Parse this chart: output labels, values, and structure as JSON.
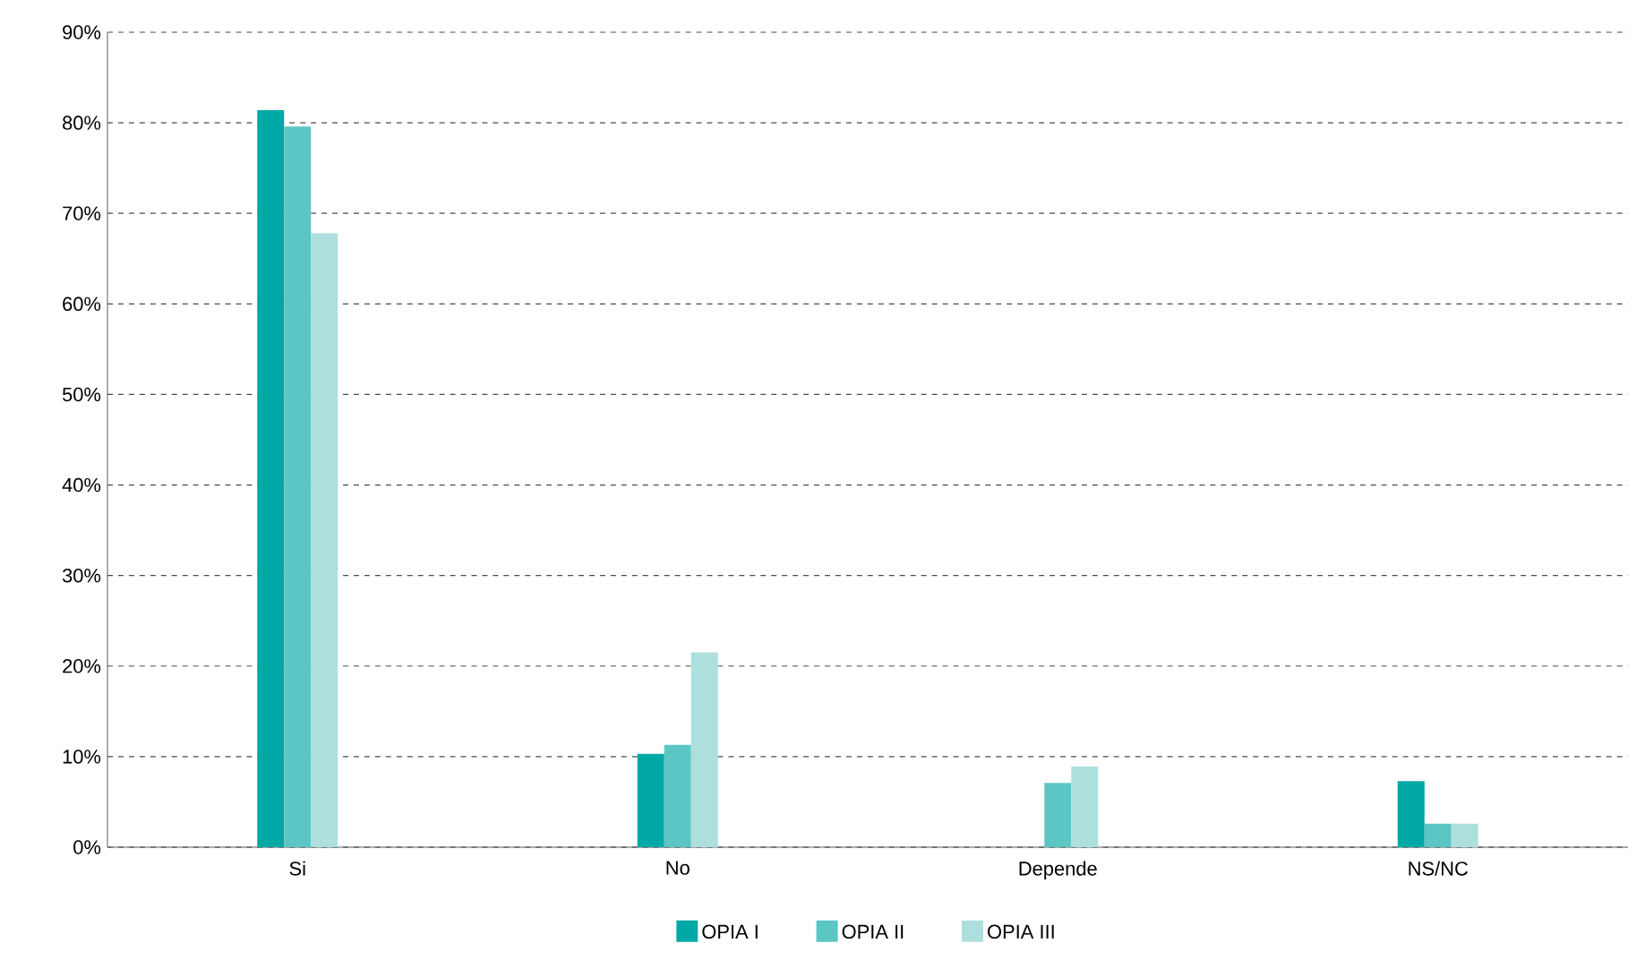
{
  "chart_data": {
    "type": "bar",
    "categories": [
      "Si",
      "No",
      "Depende",
      "NS/NC"
    ],
    "series": [
      {
        "name": "OPIA I",
        "color": "#00a9a5",
        "values": [
          81.4,
          10.3,
          null,
          7.3
        ]
      },
      {
        "name": "OPIA II",
        "color": "#5bc6c3",
        "values": [
          79.6,
          11.3,
          7.1,
          2.6
        ]
      },
      {
        "name": "OPIA III",
        "color": "#addfdd",
        "values": [
          67.8,
          21.5,
          8.9,
          2.6
        ]
      }
    ],
    "ylim": [
      0,
      90
    ],
    "yticks": [
      {
        "value": 0,
        "label": "0%"
      },
      {
        "value": 10,
        "label": "10%"
      },
      {
        "value": 20,
        "label": "20%"
      },
      {
        "value": 30,
        "label": "30%"
      },
      {
        "value": 40,
        "label": "40%"
      },
      {
        "value": 50,
        "label": "50%"
      },
      {
        "value": 60,
        "label": "60%"
      },
      {
        "value": 70,
        "label": "70%"
      },
      {
        "value": 80,
        "label": "80%"
      },
      {
        "value": 90,
        "label": "90%"
      }
    ],
    "grid": "y",
    "legend": "bottom"
  }
}
